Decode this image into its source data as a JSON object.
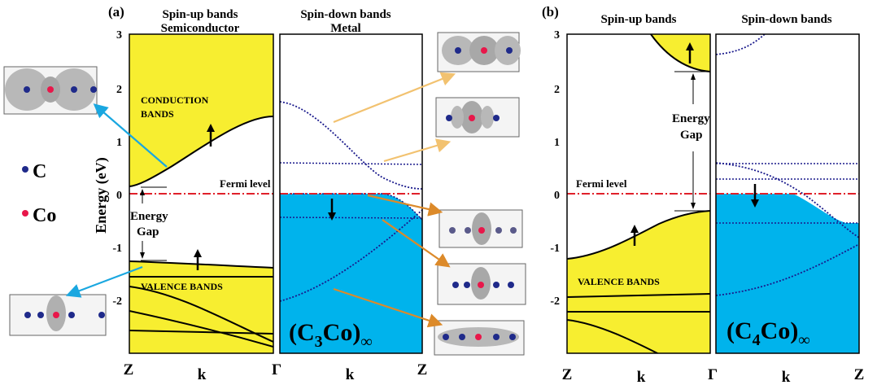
{
  "panel_a": {
    "label": "(a)",
    "title_up_1": "Spin-up bands",
    "title_up_2": "Semiconductor",
    "title_down_1": "Spin-down bands",
    "title_down_2": "Metal",
    "y_axis_label": "Energy (eV)",
    "y_ticks": [
      "3",
      "2",
      "1",
      "0",
      "-1",
      "-2"
    ],
    "k_labels": [
      "Z",
      "k",
      "Γ",
      "k",
      "Z"
    ],
    "conduction_label_1": "CONDUCTION",
    "conduction_label_2": "BANDS",
    "valence_label": "VALENCE BANDS",
    "fermi_label": "Fermi level",
    "gap_label_1": "Energy",
    "gap_label_2": "Gap",
    "formula_main": "(C",
    "formula_sub1": "3",
    "formula_mid": "Co)",
    "formula_sub2": "∞"
  },
  "panel_b": {
    "label": "(b)",
    "title_up": "Spin-up bands",
    "title_down": "Spin-down bands",
    "y_ticks": [
      "3",
      "2",
      "1",
      "0",
      "-1",
      "-2"
    ],
    "k_labels": [
      "Z",
      "k",
      "Γ",
      "k",
      "Z"
    ],
    "valence_label": "VALENCE BANDS",
    "fermi_label": "Fermi level",
    "gap_label_1": "Energy",
    "gap_label_2": "Gap",
    "formula_main": "(C",
    "formula_sub1": "4",
    "formula_mid": "Co)",
    "formula_sub2": "∞"
  },
  "legend": {
    "carbon": "C",
    "cobalt": "Co"
  },
  "colors": {
    "band_fill_up": "#f7ee30",
    "band_fill_down": "#00b3ec",
    "fermi_line": "#e0202a",
    "dotted_band": "#1a1a8c",
    "carbon_atom": "#1f2a8a",
    "cobalt_atom": "#e8174a",
    "arrow_blue": "#1aa7e0",
    "arrow_light_orange": "#f2c270",
    "arrow_orange": "#dc8a2a"
  }
}
